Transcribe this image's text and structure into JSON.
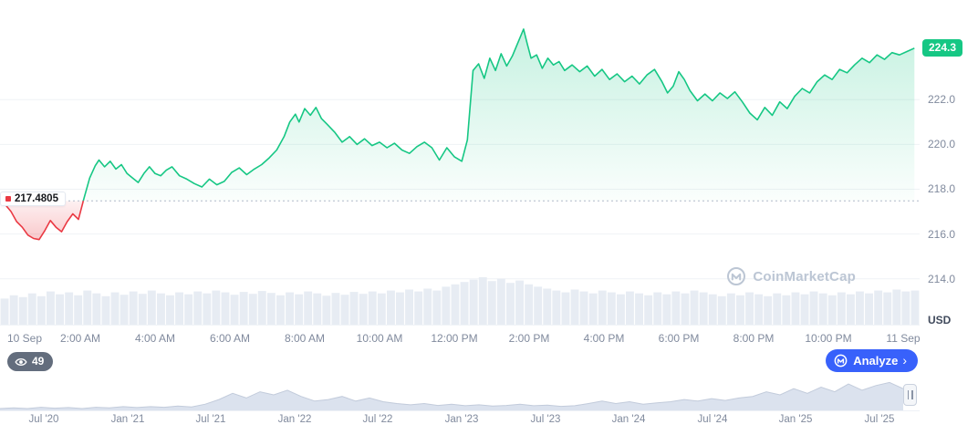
{
  "chart_data": {
    "type": "area",
    "series": [
      {
        "name": "price",
        "points": [
          [
            0,
            217.3
          ],
          [
            0.15,
            217.0
          ],
          [
            0.3,
            216.55
          ],
          [
            0.45,
            216.3
          ],
          [
            0.6,
            215.95
          ],
          [
            0.75,
            215.8
          ],
          [
            0.9,
            215.75
          ],
          [
            1.05,
            216.15
          ],
          [
            1.2,
            216.6
          ],
          [
            1.35,
            216.3
          ],
          [
            1.5,
            216.1
          ],
          [
            1.65,
            216.55
          ],
          [
            1.8,
            216.9
          ],
          [
            1.95,
            216.65
          ],
          [
            2.1,
            217.6
          ],
          [
            2.25,
            218.5
          ],
          [
            2.4,
            219.05
          ],
          [
            2.5,
            219.3
          ],
          [
            2.65,
            219.0
          ],
          [
            2.8,
            219.25
          ],
          [
            2.95,
            218.9
          ],
          [
            3.1,
            219.1
          ],
          [
            3.25,
            218.7
          ],
          [
            3.4,
            218.5
          ],
          [
            3.55,
            218.3
          ],
          [
            3.7,
            218.7
          ],
          [
            3.85,
            219.0
          ],
          [
            4.0,
            218.7
          ],
          [
            4.15,
            218.6
          ],
          [
            4.3,
            218.85
          ],
          [
            4.45,
            219.0
          ],
          [
            4.65,
            218.6
          ],
          [
            4.85,
            218.45
          ],
          [
            5.05,
            218.25
          ],
          [
            5.25,
            218.1
          ],
          [
            5.45,
            218.45
          ],
          [
            5.65,
            218.2
          ],
          [
            5.85,
            218.35
          ],
          [
            6.05,
            218.75
          ],
          [
            6.25,
            218.95
          ],
          [
            6.45,
            218.65
          ],
          [
            6.65,
            218.9
          ],
          [
            6.85,
            219.1
          ],
          [
            7.05,
            219.4
          ],
          [
            7.25,
            219.75
          ],
          [
            7.45,
            220.35
          ],
          [
            7.6,
            221.0
          ],
          [
            7.75,
            221.35
          ],
          [
            7.85,
            221.0
          ],
          [
            8.0,
            221.6
          ],
          [
            8.15,
            221.3
          ],
          [
            8.3,
            221.65
          ],
          [
            8.45,
            221.15
          ],
          [
            8.6,
            220.9
          ],
          [
            8.8,
            220.55
          ],
          [
            9.0,
            220.1
          ],
          [
            9.2,
            220.35
          ],
          [
            9.4,
            220.0
          ],
          [
            9.6,
            220.25
          ],
          [
            9.8,
            219.95
          ],
          [
            10.0,
            220.1
          ],
          [
            10.2,
            219.85
          ],
          [
            10.4,
            220.05
          ],
          [
            10.6,
            219.75
          ],
          [
            10.8,
            219.6
          ],
          [
            11.0,
            219.9
          ],
          [
            11.2,
            220.1
          ],
          [
            11.4,
            219.85
          ],
          [
            11.6,
            219.3
          ],
          [
            11.8,
            219.85
          ],
          [
            12.0,
            219.45
          ],
          [
            12.2,
            219.25
          ],
          [
            12.35,
            220.2
          ],
          [
            12.5,
            223.3
          ],
          [
            12.65,
            223.6
          ],
          [
            12.8,
            222.95
          ],
          [
            12.95,
            223.85
          ],
          [
            13.1,
            223.3
          ],
          [
            13.25,
            224.05
          ],
          [
            13.4,
            223.5
          ],
          [
            13.55,
            223.95
          ],
          [
            13.85,
            225.15
          ],
          [
            13.95,
            224.5
          ],
          [
            14.05,
            223.85
          ],
          [
            14.2,
            224.0
          ],
          [
            14.35,
            223.4
          ],
          [
            14.5,
            223.85
          ],
          [
            14.65,
            223.55
          ],
          [
            14.8,
            223.7
          ],
          [
            14.95,
            223.3
          ],
          [
            15.15,
            223.55
          ],
          [
            15.35,
            223.25
          ],
          [
            15.55,
            223.5
          ],
          [
            15.75,
            223.05
          ],
          [
            15.95,
            223.35
          ],
          [
            16.15,
            222.9
          ],
          [
            16.35,
            223.15
          ],
          [
            16.55,
            222.8
          ],
          [
            16.75,
            223.05
          ],
          [
            16.95,
            222.7
          ],
          [
            17.15,
            223.1
          ],
          [
            17.35,
            223.35
          ],
          [
            17.55,
            222.8
          ],
          [
            17.7,
            222.3
          ],
          [
            17.85,
            222.6
          ],
          [
            18.0,
            223.25
          ],
          [
            18.15,
            222.9
          ],
          [
            18.3,
            222.4
          ],
          [
            18.5,
            221.95
          ],
          [
            18.7,
            222.25
          ],
          [
            18.9,
            221.95
          ],
          [
            19.1,
            222.3
          ],
          [
            19.3,
            222.05
          ],
          [
            19.5,
            222.35
          ],
          [
            19.7,
            221.9
          ],
          [
            19.9,
            221.4
          ],
          [
            20.1,
            221.1
          ],
          [
            20.3,
            221.65
          ],
          [
            20.5,
            221.3
          ],
          [
            20.7,
            221.9
          ],
          [
            20.9,
            221.6
          ],
          [
            21.1,
            222.15
          ],
          [
            21.3,
            222.5
          ],
          [
            21.5,
            222.3
          ],
          [
            21.7,
            222.8
          ],
          [
            21.9,
            223.1
          ],
          [
            22.1,
            222.9
          ],
          [
            22.3,
            223.35
          ],
          [
            22.5,
            223.2
          ],
          [
            22.7,
            223.55
          ],
          [
            22.9,
            223.85
          ],
          [
            23.1,
            223.65
          ],
          [
            23.3,
            224.0
          ],
          [
            23.5,
            223.8
          ],
          [
            23.7,
            224.1
          ],
          [
            23.9,
            224.0
          ],
          [
            24.1,
            224.15
          ],
          [
            24.3,
            224.3
          ]
        ]
      }
    ],
    "baseline": 217.4805,
    "baseline_label": "217.4805",
    "current_price": 224.3,
    "current_price_label": "224.3",
    "y_axis": {
      "labels": [
        "222.0",
        "220.0",
        "218.0",
        "216.0",
        "214.0"
      ],
      "values": [
        222,
        220,
        218,
        216,
        214
      ],
      "y_min": 211.95,
      "y_max": 226.45,
      "unit_label": "USD"
    },
    "x_axis": {
      "labels": [
        "10 Sep",
        "2:00 AM",
        "4:00 AM",
        "6:00 AM",
        "8:00 AM",
        "10:00 AM",
        "12:00 PM",
        "2:00 PM",
        "4:00 PM",
        "6:00 PM",
        "8:00 PM",
        "10:00 PM",
        "11 Sep"
      ]
    },
    "volume": [
      0.55,
      0.62,
      0.58,
      0.66,
      0.6,
      0.7,
      0.64,
      0.68,
      0.62,
      0.72,
      0.66,
      0.6,
      0.68,
      0.63,
      0.7,
      0.65,
      0.72,
      0.66,
      0.62,
      0.68,
      0.64,
      0.7,
      0.66,
      0.72,
      0.68,
      0.63,
      0.69,
      0.65,
      0.71,
      0.67,
      0.62,
      0.68,
      0.64,
      0.7,
      0.66,
      0.61,
      0.67,
      0.63,
      0.69,
      0.65,
      0.7,
      0.66,
      0.72,
      0.68,
      0.74,
      0.7,
      0.76,
      0.72,
      0.8,
      0.85,
      0.9,
      0.95,
      1.0,
      0.92,
      0.97,
      0.88,
      0.93,
      0.85,
      0.8,
      0.76,
      0.72,
      0.68,
      0.74,
      0.7,
      0.66,
      0.72,
      0.68,
      0.64,
      0.7,
      0.66,
      0.62,
      0.68,
      0.64,
      0.7,
      0.66,
      0.72,
      0.68,
      0.64,
      0.6,
      0.66,
      0.62,
      0.68,
      0.64,
      0.6,
      0.66,
      0.62,
      0.68,
      0.64,
      0.7,
      0.66,
      0.62,
      0.68,
      0.64,
      0.7,
      0.66,
      0.72,
      0.68,
      0.74,
      0.7,
      0.72
    ],
    "grid": true,
    "legend": false,
    "colors": {
      "up": "#16c784",
      "down": "#ea3943",
      "grid": "#eff2f5",
      "axis_text": "#808a9d",
      "volume": "#e7ecf3",
      "baseline_dotted": "#b0b9ca",
      "nav_fill": "#dbe2ee",
      "nav_stroke": "#c2cbdb",
      "badge_green": "#16c784",
      "analyze_blue": "#3861fb"
    }
  },
  "navigator": {
    "labels": [
      "Jul '20",
      "Jan '21",
      "Jul '21",
      "Jan '22",
      "Jul '22",
      "Jan '23",
      "Jul '23",
      "Jan '24",
      "Jul '24",
      "Jan '25",
      "Jul '25"
    ],
    "values": [
      0.06,
      0.08,
      0.06,
      0.1,
      0.07,
      0.09,
      0.06,
      0.1,
      0.08,
      0.12,
      0.09,
      0.12,
      0.1,
      0.14,
      0.11,
      0.2,
      0.35,
      0.55,
      0.4,
      0.6,
      0.5,
      0.65,
      0.45,
      0.3,
      0.35,
      0.45,
      0.3,
      0.4,
      0.28,
      0.22,
      0.18,
      0.22,
      0.16,
      0.2,
      0.15,
      0.18,
      0.14,
      0.16,
      0.2,
      0.15,
      0.17,
      0.13,
      0.15,
      0.22,
      0.3,
      0.22,
      0.28,
      0.2,
      0.24,
      0.28,
      0.35,
      0.3,
      0.38,
      0.32,
      0.4,
      0.45,
      0.6,
      0.5,
      0.7,
      0.55,
      0.75,
      0.6,
      0.85,
      0.65,
      0.8,
      0.9,
      0.7
    ]
  },
  "badges": {
    "watch_count": "49",
    "analyze_label": "Analyze",
    "analyze_chevron": "›"
  },
  "watermark": {
    "text": "CoinMarketCap"
  }
}
